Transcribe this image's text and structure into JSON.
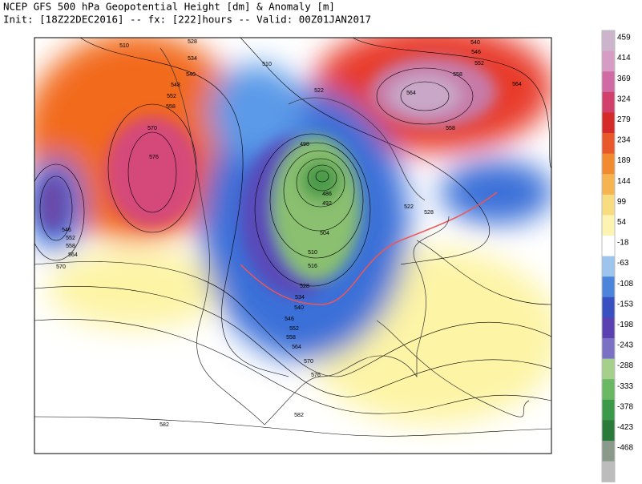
{
  "header": {
    "title": "NCEP GFS 500 hPa Geopotential Height [dm] & Anomaly [m]",
    "subtitle": "Init: [18Z22DEC2016] -- fx: [222]hours -- Valid: 00Z01JAN2017"
  },
  "colorbar": {
    "labels": [
      459,
      414,
      369,
      324,
      279,
      234,
      189,
      144,
      99,
      54,
      -18,
      -63,
      -108,
      -153,
      -198,
      -243,
      -288,
      -333,
      -378,
      -423,
      -468
    ]
  },
  "contour_labels": [
    510,
    528,
    534,
    540,
    548,
    552,
    558,
    570,
    576,
    510,
    522,
    540,
    546,
    552,
    558,
    564,
    558,
    564,
    498,
    486,
    492,
    504,
    510,
    516,
    522,
    528,
    528,
    534,
    540,
    546,
    552,
    558,
    564,
    570,
    576,
    546,
    552,
    558,
    564,
    570,
    582,
    582
  ]
}
